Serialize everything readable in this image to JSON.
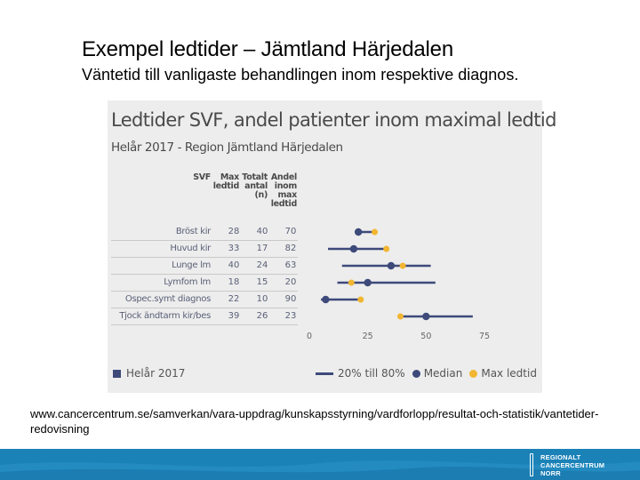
{
  "slide": {
    "title": "Exempel ledtider – Jämtland Härjedalen",
    "subtitle": "Väntetid till vanligaste behandlingen inom respektive diagnos."
  },
  "figure": {
    "title": "Ledtider SVF, andel patienter inom maximal ledtid",
    "subtitle": "Helår 2017 -   Region Jämtland Härjedalen",
    "columns": {
      "svf": "SVF",
      "max": [
        "Max",
        "ledtid"
      ],
      "total": [
        "Totalt",
        "antal",
        "(n)"
      ],
      "share": [
        "Andel",
        "inom",
        "max",
        "ledtid"
      ]
    },
    "legend": {
      "period": "Helår 2017",
      "range": "20% till 80%",
      "median": "Median",
      "max": "Max ledtid"
    },
    "colors": {
      "range": "#3d4a7a",
      "median": "#3d4a7a",
      "max": "#f2b632",
      "background": "#ededed",
      "footer": "#1b82b8"
    }
  },
  "chart_data": {
    "type": "scatter",
    "title": "Ledtider SVF, andel patienter inom maximal ledtid",
    "x_ticks": [
      0,
      25,
      50,
      75
    ],
    "xlim": [
      0,
      75
    ],
    "rows": [
      {
        "label": "Bröst kir",
        "max_ledtid": 28,
        "total_n": 40,
        "andel": 70,
        "p20": 20,
        "median": 21,
        "p80": 28
      },
      {
        "label": "Huvud kir",
        "max_ledtid": 33,
        "total_n": 17,
        "andel": 82,
        "p20": 8,
        "median": 19,
        "p80": 33
      },
      {
        "label": "Lunge lm",
        "max_ledtid": 40,
        "total_n": 24,
        "andel": 63,
        "p20": 14,
        "median": 35,
        "p80": 52
      },
      {
        "label": "Lymfom lm",
        "max_ledtid": 18,
        "total_n": 15,
        "andel": 20,
        "p20": 12,
        "median": 25,
        "p80": 54
      },
      {
        "label": "Ospec.symt diagnos",
        "max_ledtid": 22,
        "total_n": 10,
        "andel": 90,
        "p20": 5,
        "median": 7,
        "p80": 22
      },
      {
        "label": "Tjock ändtarm kir/bes",
        "max_ledtid": 39,
        "total_n": 26,
        "andel": 23,
        "p20": 38,
        "median": 50,
        "p80": 70
      }
    ]
  },
  "source": {
    "url": "www.cancercentrum.se/samverkan/vara-uppdrag/kunskapsstyrning/vardforlopp/resultat-och-statistik/vantetider-redovisning"
  },
  "footer": {
    "logo_lines": [
      "REGIONALT",
      "CANCERCENTRUM",
      "NORR"
    ]
  }
}
